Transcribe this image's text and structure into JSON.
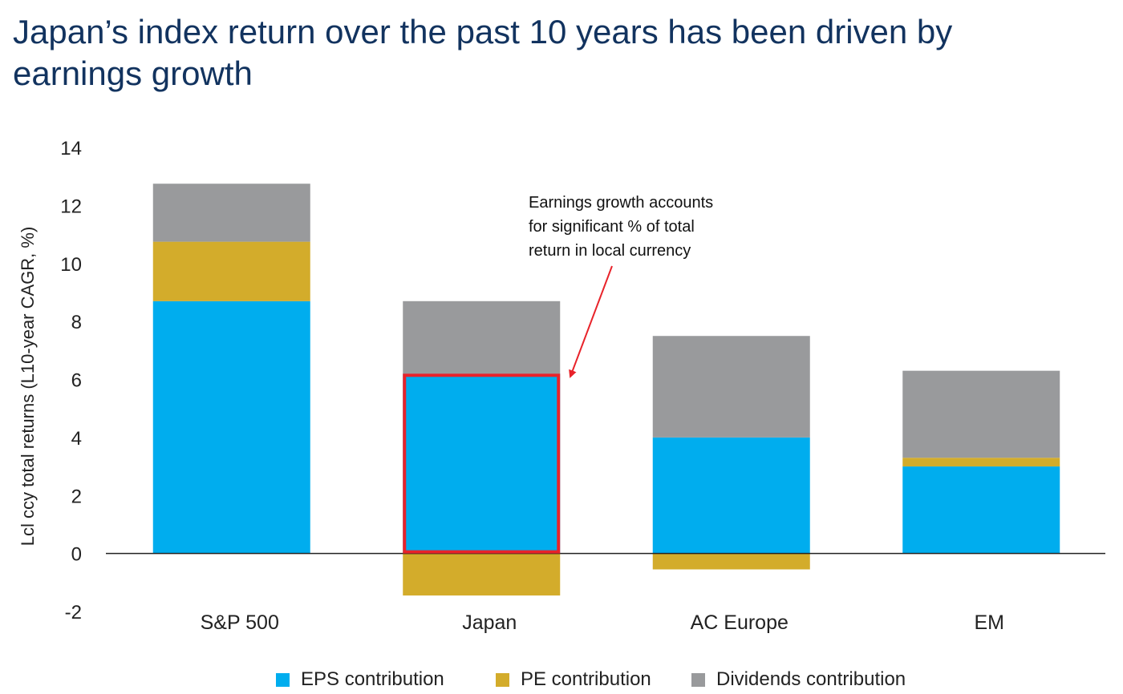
{
  "title": "Japan’s index return over the past 10 years has been driven by earnings growth",
  "colors": {
    "eps": "#00adee",
    "pe": "#d3ac2b",
    "dividends": "#999a9c",
    "highlight": "#e8232a",
    "annotation_arrow": "#e8232a",
    "title": "#12335f"
  },
  "chart_data": {
    "type": "bar",
    "stacked": true,
    "categories": [
      "S&P 500",
      "Japan",
      "AC Europe",
      "EM"
    ],
    "series": [
      {
        "name": "EPS contribution",
        "color_key": "eps",
        "values": [
          8.7,
          6.2,
          4.0,
          3.0
        ]
      },
      {
        "name": "PE contribution",
        "color_key": "pe",
        "values": [
          2.05,
          -1.45,
          -0.55,
          0.3
        ]
      },
      {
        "name": "Dividends contribution",
        "color_key": "dividends",
        "values": [
          2.0,
          2.5,
          3.5,
          3.0
        ]
      }
    ],
    "ylabel": "Lcl ccy total returns (L10-year CAGR, %)",
    "xlabel": "",
    "ylim": [
      -2,
      14
    ],
    "yticks": [
      -2,
      0,
      2,
      4,
      6,
      8,
      10,
      12,
      14
    ],
    "grid": false,
    "legend_position": "bottom",
    "highlight": {
      "category": "Japan",
      "series": "EPS contribution"
    },
    "annotation": {
      "lines": [
        "Earnings growth accounts",
        "for significant % of total",
        "return in local currency"
      ],
      "target_category": "Japan"
    }
  }
}
